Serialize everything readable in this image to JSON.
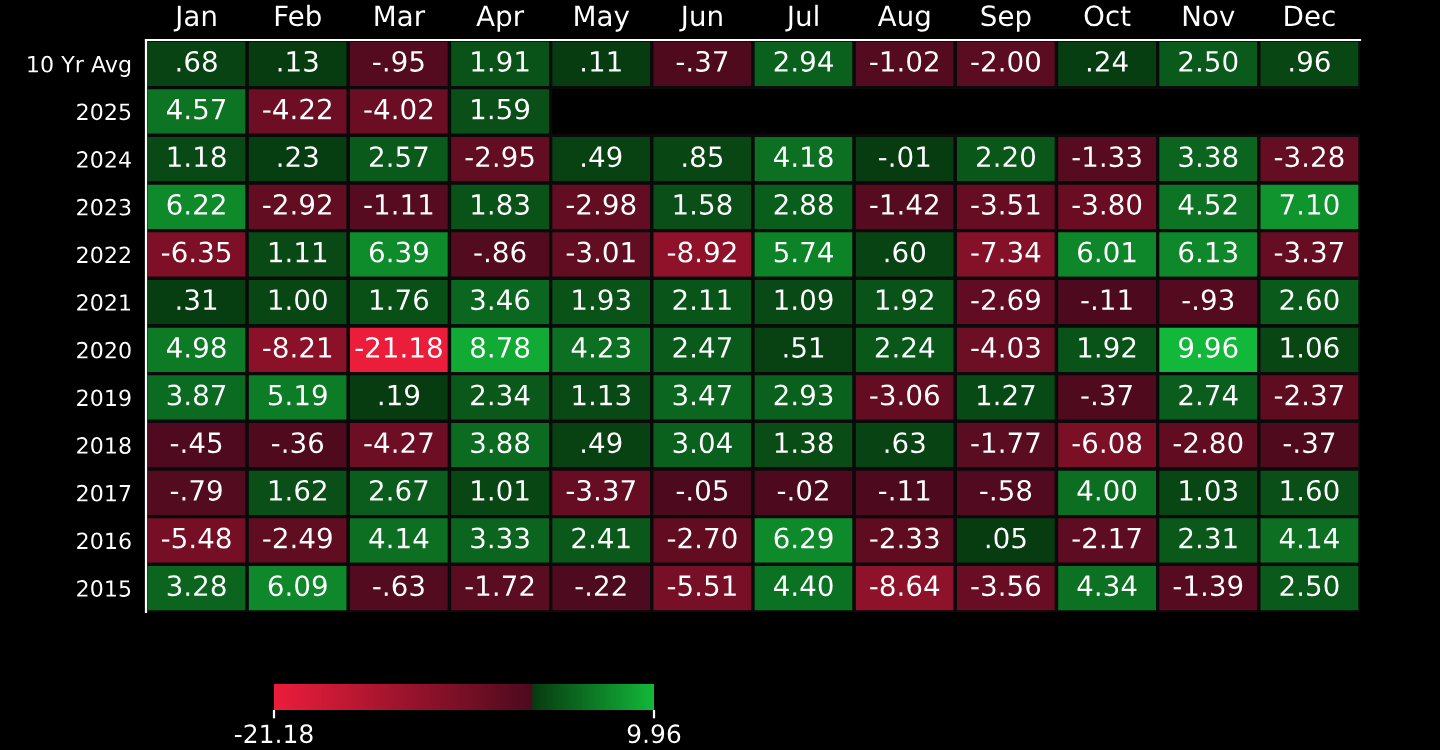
{
  "chart_data": {
    "type": "heatmap",
    "categories": [
      "Jan",
      "Feb",
      "Mar",
      "Apr",
      "May",
      "Jun",
      "Jul",
      "Aug",
      "Sep",
      "Oct",
      "Nov",
      "Dec"
    ],
    "y_categories": [
      "10 Yr Avg",
      "2025",
      "2024",
      "2023",
      "2022",
      "2021",
      "2020",
      "2019",
      "2018",
      "2017",
      "2016",
      "2015"
    ],
    "cells": [
      [
        0.68,
        0.13,
        -0.95,
        1.91,
        0.11,
        -0.37,
        2.94,
        -1.02,
        -2.0,
        0.24,
        2.5,
        0.96
      ],
      [
        4.57,
        -4.22,
        -4.02,
        1.59,
        null,
        null,
        null,
        null,
        null,
        null,
        null,
        null
      ],
      [
        1.18,
        0.23,
        2.57,
        -2.95,
        0.49,
        0.85,
        4.18,
        -0.01,
        2.2,
        -1.33,
        3.38,
        -3.28
      ],
      [
        6.22,
        -2.92,
        -1.11,
        1.83,
        -2.98,
        1.58,
        2.88,
        -1.42,
        -3.51,
        -3.8,
        4.52,
        7.1
      ],
      [
        -6.35,
        1.11,
        6.39,
        -0.86,
        -3.01,
        -8.92,
        5.74,
        0.6,
        -7.34,
        6.01,
        6.13,
        -3.37
      ],
      [
        0.31,
        1.0,
        1.76,
        3.46,
        1.93,
        2.11,
        1.09,
        1.92,
        -2.69,
        -0.11,
        -0.93,
        2.6
      ],
      [
        4.98,
        -8.21,
        -21.18,
        8.78,
        4.23,
        2.47,
        0.51,
        2.24,
        -4.03,
        1.92,
        9.96,
        1.06
      ],
      [
        3.87,
        5.19,
        0.19,
        2.34,
        1.13,
        3.47,
        2.93,
        -3.06,
        1.27,
        -0.37,
        2.74,
        -2.37
      ],
      [
        -0.45,
        -0.36,
        -4.27,
        3.88,
        0.49,
        3.04,
        1.38,
        0.63,
        -1.77,
        -6.08,
        -2.8,
        -0.37
      ],
      [
        -0.79,
        1.62,
        2.67,
        1.01,
        -3.37,
        -0.05,
        -0.02,
        -0.11,
        -0.58,
        4.0,
        1.03,
        1.6
      ],
      [
        -5.48,
        -2.49,
        4.14,
        3.33,
        2.41,
        -2.7,
        6.29,
        -2.33,
        0.05,
        -2.17,
        2.31,
        4.14
      ],
      [
        3.28,
        6.09,
        -0.63,
        -1.72,
        -0.22,
        -5.51,
        4.4,
        -8.64,
        -3.56,
        4.34,
        -1.39,
        2.5
      ]
    ],
    "cell_labels": [
      [
        ".68",
        ".13",
        "-.95",
        "1.91",
        ".11",
        "-.37",
        "2.94",
        "-1.02",
        "-2.00",
        ".24",
        "2.50",
        ".96"
      ],
      [
        "4.57",
        "-4.22",
        "-4.02",
        "1.59",
        null,
        null,
        null,
        null,
        null,
        null,
        null,
        null
      ],
      [
        "1.18",
        ".23",
        "2.57",
        "-2.95",
        ".49",
        ".85",
        "4.18",
        "-.01",
        "2.20",
        "-1.33",
        "3.38",
        "-3.28"
      ],
      [
        "6.22",
        "-2.92",
        "-1.11",
        "1.83",
        "-2.98",
        "1.58",
        "2.88",
        "-1.42",
        "-3.51",
        "-3.80",
        "4.52",
        "7.10"
      ],
      [
        "-6.35",
        "1.11",
        "6.39",
        "-.86",
        "-3.01",
        "-8.92",
        "5.74",
        ".60",
        "-7.34",
        "6.01",
        "6.13",
        "-3.37"
      ],
      [
        ".31",
        "1.00",
        "1.76",
        "3.46",
        "1.93",
        "2.11",
        "1.09",
        "1.92",
        "-2.69",
        "-.11",
        "-.93",
        "2.60"
      ],
      [
        "4.98",
        "-8.21",
        "-21.18",
        "8.78",
        "4.23",
        "2.47",
        ".51",
        "2.24",
        "-4.03",
        "1.92",
        "9.96",
        "1.06"
      ],
      [
        "3.87",
        "5.19",
        ".19",
        "2.34",
        "1.13",
        "3.47",
        "2.93",
        "-3.06",
        "1.27",
        "-.37",
        "2.74",
        "-2.37"
      ],
      [
        "-.45",
        "-.36",
        "-4.27",
        "3.88",
        ".49",
        "3.04",
        "1.38",
        ".63",
        "-1.77",
        "-6.08",
        "-2.80",
        "-.37"
      ],
      [
        "-.79",
        "1.62",
        "2.67",
        "1.01",
        "-3.37",
        "-.05",
        "-.02",
        "-.11",
        "-.58",
        "4.00",
        "1.03",
        "1.60"
      ],
      [
        "-5.48",
        "-2.49",
        "4.14",
        "3.33",
        "2.41",
        "-2.70",
        "6.29",
        "-2.33",
        ".05",
        "-2.17",
        "2.31",
        "4.14"
      ],
      [
        "3.28",
        "6.09",
        "-.63",
        "-1.72",
        "-.22",
        "-5.51",
        "4.40",
        "-8.64",
        "-3.56",
        "4.34",
        "-1.39",
        "2.50"
      ]
    ],
    "clim": [
      -21.18,
      9.96
    ],
    "cticks": [
      {
        "value": -21.18,
        "label": "-21.18"
      },
      {
        "value": 9.96,
        "label": "9.96"
      }
    ]
  }
}
